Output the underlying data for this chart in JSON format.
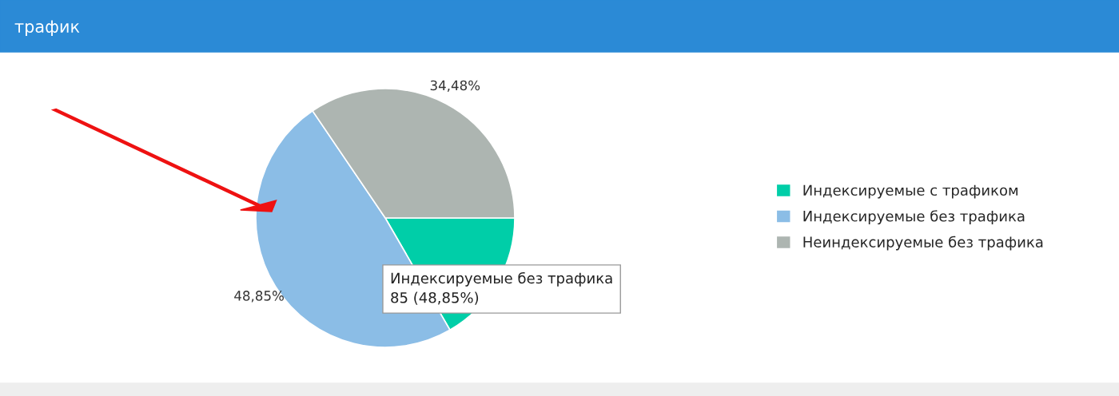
{
  "chart_data": {
    "type": "pie",
    "title": "трафик",
    "categories": [
      "Индексируемые с трафиком",
      "Индексируемые без трафика",
      "Неиндексируемые без трафика"
    ],
    "values": [
      16.67,
      48.85,
      34.48
    ],
    "colors": [
      "#00cea8",
      "#8bbde6",
      "#adb5b1"
    ],
    "value_labels": [
      null,
      "48,85%",
      "34,48%"
    ],
    "annotations": [
      "Индексируемые без трафика\n85 (48,85%)"
    ],
    "legend": "right"
  }
}
